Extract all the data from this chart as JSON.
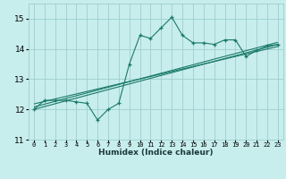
{
  "title": "",
  "xlabel": "Humidex (Indice chaleur)",
  "ylabel": "",
  "background_color": "#c8eded",
  "grid_color": "#9dcece",
  "line_color": "#1a7a6a",
  "xlim": [
    -0.5,
    23.5
  ],
  "ylim": [
    11.0,
    15.5
  ],
  "yticks": [
    11,
    12,
    13,
    14,
    15
  ],
  "xtick_labels": [
    "0",
    "1",
    "2",
    "3",
    "4",
    "5",
    "6",
    "7",
    "8",
    "9",
    "10",
    "11",
    "12",
    "13",
    "14",
    "15",
    "16",
    "17",
    "18",
    "19",
    "20",
    "21",
    "22",
    "23"
  ],
  "data_x": [
    0,
    1,
    2,
    3,
    4,
    5,
    6,
    7,
    8,
    9,
    10,
    11,
    12,
    13,
    14,
    15,
    16,
    17,
    18,
    19,
    20,
    21,
    22,
    23
  ],
  "data_y": [
    12.0,
    12.3,
    12.3,
    12.3,
    12.25,
    12.2,
    11.65,
    12.0,
    12.2,
    13.5,
    14.45,
    14.35,
    14.7,
    15.05,
    14.45,
    14.2,
    14.2,
    14.15,
    14.3,
    14.3,
    13.75,
    13.95,
    14.1,
    14.15
  ],
  "reg_lines": [
    {
      "x0": 0,
      "y0": 12.0,
      "x1": 23,
      "y1": 14.15
    },
    {
      "x0": 0,
      "y0": 12.08,
      "x1": 23,
      "y1": 14.22
    },
    {
      "x0": 0,
      "y0": 12.18,
      "x1": 23,
      "y1": 14.08
    }
  ]
}
